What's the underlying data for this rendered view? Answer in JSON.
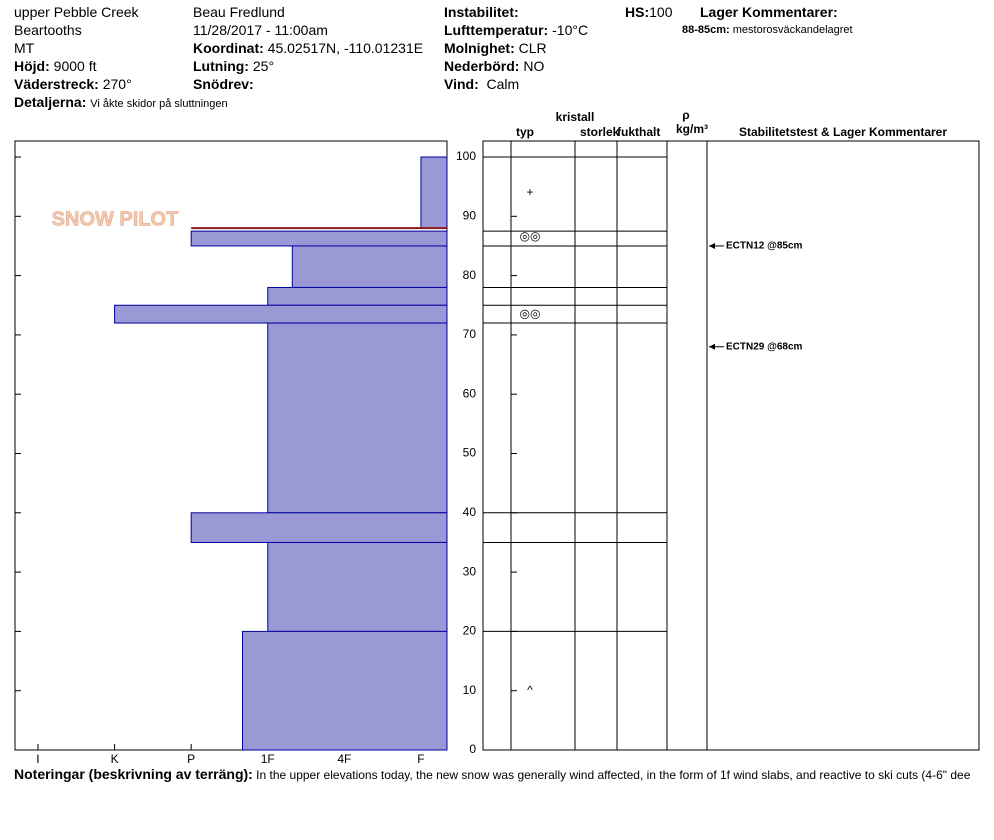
{
  "header": {
    "location": "upper Pebble Creek",
    "range": "Beartooths",
    "state": "MT",
    "elevation": {
      "label": "Höjd:",
      "value": "9000 ft"
    },
    "aspect": {
      "label": "Väderstreck:",
      "value": "270°"
    },
    "details": {
      "label": "Detaljerna:",
      "value": "Vi åkte skidor på sluttningen"
    },
    "observer": "Beau  Fredlund",
    "datetime": "11/28/2017 - 11:00am",
    "coordinates": {
      "label": "Koordinat:",
      "value": "45.02517N, -110.01231E"
    },
    "slope": {
      "label": "Lutning:",
      "value": "25°"
    },
    "wind_loading": {
      "label": "Snödrev:"
    },
    "instability": {
      "label": "Instabilitet:"
    },
    "air_temp": {
      "label": "Lufttemperatur:",
      "value": "-10°C"
    },
    "sky": {
      "label": "Molnighet:",
      "value": "CLR"
    },
    "precip": {
      "label": "Nederbörd:",
      "value": "NO"
    },
    "wind": {
      "label": "Vind:",
      "value": "Calm"
    },
    "hs": {
      "label": "HS:",
      "value": "100"
    },
    "layer_comments_title": "Lager Kommentarer:",
    "layer_comment": {
      "label": "88-85cm:",
      "value": "mestorosväckandelagret"
    }
  },
  "logo": "SNOW PILOT",
  "chart_data": {
    "type": "hardness-profile",
    "ylim": [
      0,
      100
    ],
    "yticks": [
      0,
      10,
      20,
      30,
      40,
      50,
      60,
      70,
      80,
      90,
      100
    ],
    "xlim": [
      6.3,
      0.66
    ],
    "xticks": [
      {
        "value": 6,
        "label": "I"
      },
      {
        "value": 5,
        "label": "K"
      },
      {
        "value": 4,
        "label": "P"
      },
      {
        "value": 3,
        "label": "1F"
      },
      {
        "value": 2,
        "label": "4F"
      },
      {
        "value": 1,
        "label": "F"
      }
    ],
    "color": "#9999d6",
    "edge_color": "#0000a0",
    "concern_depth": 88,
    "concern_color": "#8b1a1a",
    "layers": [
      {
        "top": 100,
        "bottom": 88,
        "hardness": 1
      },
      {
        "top": 87.5,
        "bottom": 85,
        "hardness": 4
      },
      {
        "top": 85,
        "bottom": 78,
        "hardness": 2.68
      },
      {
        "top": 78,
        "bottom": 75,
        "hardness": 3
      },
      {
        "top": 75,
        "bottom": 72,
        "hardness": 5
      },
      {
        "top": 72,
        "bottom": 40,
        "hardness": 3
      },
      {
        "top": 40,
        "bottom": 35,
        "hardness": 4
      },
      {
        "top": 35,
        "bottom": 20,
        "hardness": 3
      },
      {
        "top": 20,
        "bottom": 0,
        "hardness": 3.33
      }
    ],
    "columns": {
      "crystal": "kristall",
      "type": "typ",
      "size": "storlek",
      "moisture": "fukthalt",
      "rho": "ρ",
      "density_unit": "kg/m³",
      "tests": "Stabilitetstest & Lager Kommentarer"
    },
    "grains": [
      {
        "symbol": "+",
        "depth": 94
      },
      {
        "symbol": "◎◎",
        "depth": 86.5
      },
      {
        "symbol": "◎◎",
        "depth": 73.5
      },
      {
        "symbol": "^",
        "depth": 10
      }
    ],
    "tests": [
      {
        "label": "ECTN12 @85cm",
        "depth": 85
      },
      {
        "label": "ECTN29 @68cm",
        "depth": 68
      }
    ]
  },
  "notes": {
    "label": "Noteringar (beskrivning av terräng):",
    "text": "In the upper elevations today, the new snow was generally wind affected, in the form of 1f wind slabs, and reactive to ski cuts (4-6\" dee"
  }
}
